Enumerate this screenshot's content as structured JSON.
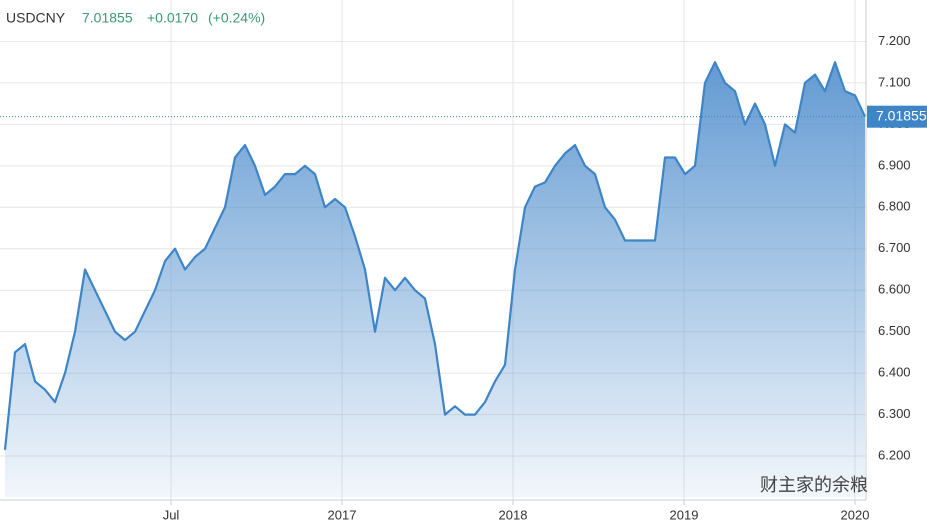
{
  "chart_data": {
    "type": "area",
    "symbol": "USDCNY",
    "last": "7.01855",
    "change": "+0.0170",
    "change_pct": "(+0.24%)",
    "current": 7.01855,
    "current_label": "7.01855",
    "watermark": "财主家的余粮",
    "color": "#3d85c6",
    "grid": true,
    "x": [
      0,
      1,
      2,
      3,
      4,
      5,
      6,
      7,
      8,
      9,
      10,
      11,
      12,
      13,
      14,
      15,
      16,
      17,
      18,
      19,
      20,
      21,
      22,
      23,
      24,
      25,
      26,
      27,
      28,
      29,
      30,
      31,
      32,
      33,
      34,
      35,
      36,
      37,
      38,
      39,
      40,
      41,
      42,
      43,
      44,
      45,
      46,
      47,
      48,
      49,
      50,
      51,
      52,
      53,
      54,
      55,
      56,
      57,
      58,
      59,
      60,
      61,
      62,
      63,
      64,
      65,
      66,
      67,
      68,
      69,
      70,
      71,
      72,
      73,
      74,
      75,
      76,
      77,
      78,
      79,
      80,
      81,
      82,
      83,
      84,
      85,
      86
    ],
    "values": [
      6.215,
      6.45,
      6.47,
      6.38,
      6.36,
      6.33,
      6.4,
      6.5,
      6.65,
      6.6,
      6.55,
      6.5,
      6.48,
      6.5,
      6.55,
      6.6,
      6.67,
      6.7,
      6.65,
      6.68,
      6.7,
      6.75,
      6.8,
      6.92,
      6.95,
      6.9,
      6.83,
      6.85,
      6.88,
      6.88,
      6.9,
      6.88,
      6.8,
      6.82,
      6.8,
      6.73,
      6.65,
      6.5,
      6.63,
      6.6,
      6.63,
      6.6,
      6.58,
      6.47,
      6.3,
      6.32,
      6.3,
      6.3,
      6.33,
      6.38,
      6.42,
      6.65,
      6.8,
      6.85,
      6.86,
      6.9,
      6.93,
      6.95,
      6.9,
      6.88,
      6.8,
      6.77,
      6.72,
      6.72,
      6.72,
      6.72,
      6.92,
      6.92,
      6.88,
      6.9,
      7.1,
      7.15,
      7.1,
      7.08,
      7.0,
      7.05,
      7.0,
      6.9,
      7.0,
      6.98,
      7.1,
      7.12,
      7.08,
      7.15,
      7.08,
      7.07,
      7.01855
    ],
    "xlim": [
      0,
      86
    ],
    "xticks": [
      {
        "value": 16.6,
        "label": "Jul"
      },
      {
        "value": 33.7,
        "label": "2017"
      },
      {
        "value": 50.8,
        "label": "2018"
      },
      {
        "value": 67.9,
        "label": "2019"
      },
      {
        "value": 85.0,
        "label": "2020"
      }
    ],
    "ylim": [
      6.1,
      7.3
    ],
    "yticks": [
      {
        "value": 6.2,
        "label": "6.200"
      },
      {
        "value": 6.3,
        "label": "6.300"
      },
      {
        "value": 6.4,
        "label": "6.400"
      },
      {
        "value": 6.5,
        "label": "6.500"
      },
      {
        "value": 6.6,
        "label": "6.600"
      },
      {
        "value": 6.7,
        "label": "6.700"
      },
      {
        "value": 6.8,
        "label": "6.800"
      },
      {
        "value": 6.9,
        "label": "6.900"
      },
      {
        "value": 7.0,
        "label": "7.000"
      },
      {
        "value": 7.1,
        "label": "7.100"
      },
      {
        "value": 7.2,
        "label": "7.200"
      }
    ]
  }
}
